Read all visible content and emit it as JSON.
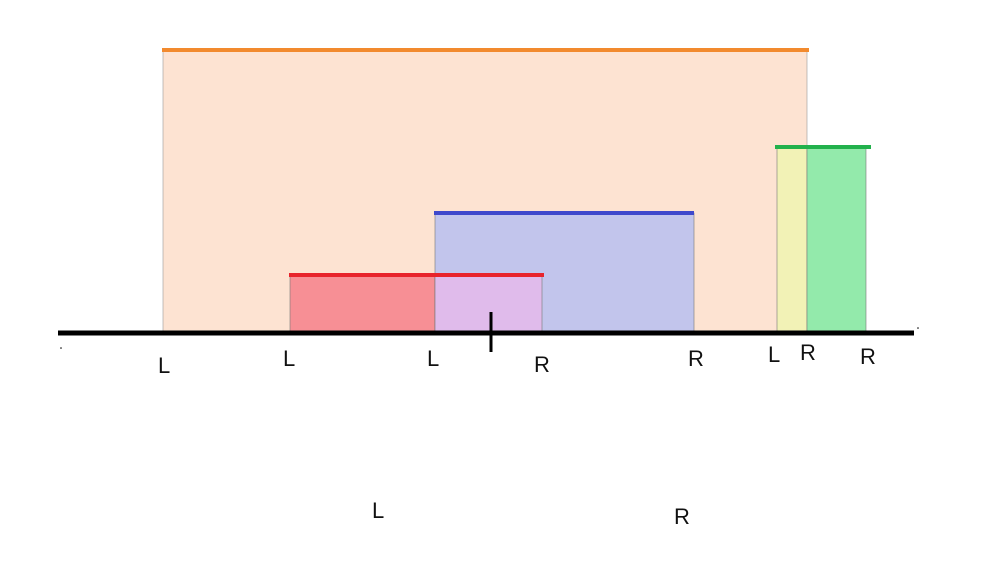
{
  "colors": {
    "orange_fill": "#fde3d2",
    "orange_top": "#f28a2e",
    "red_fill": "#f78f95",
    "red_top": "#e8242c",
    "blue_fill": "#c2c5ec",
    "blue_top": "#3f48cc",
    "overlap_fill": "#e0bbeb",
    "yellow_fill": "#f2f2b6",
    "green_fill": "#93eaab",
    "green_top": "#22b14c",
    "axis": "#000000",
    "text": "#111111"
  },
  "axis_labels": {
    "l1": "L",
    "l2": "L",
    "l3": "L",
    "r1": "R",
    "r2": "R",
    "l4": "L",
    "r3": "R",
    "r4": "R"
  },
  "bottom_labels": {
    "left": "L",
    "right": "R"
  }
}
